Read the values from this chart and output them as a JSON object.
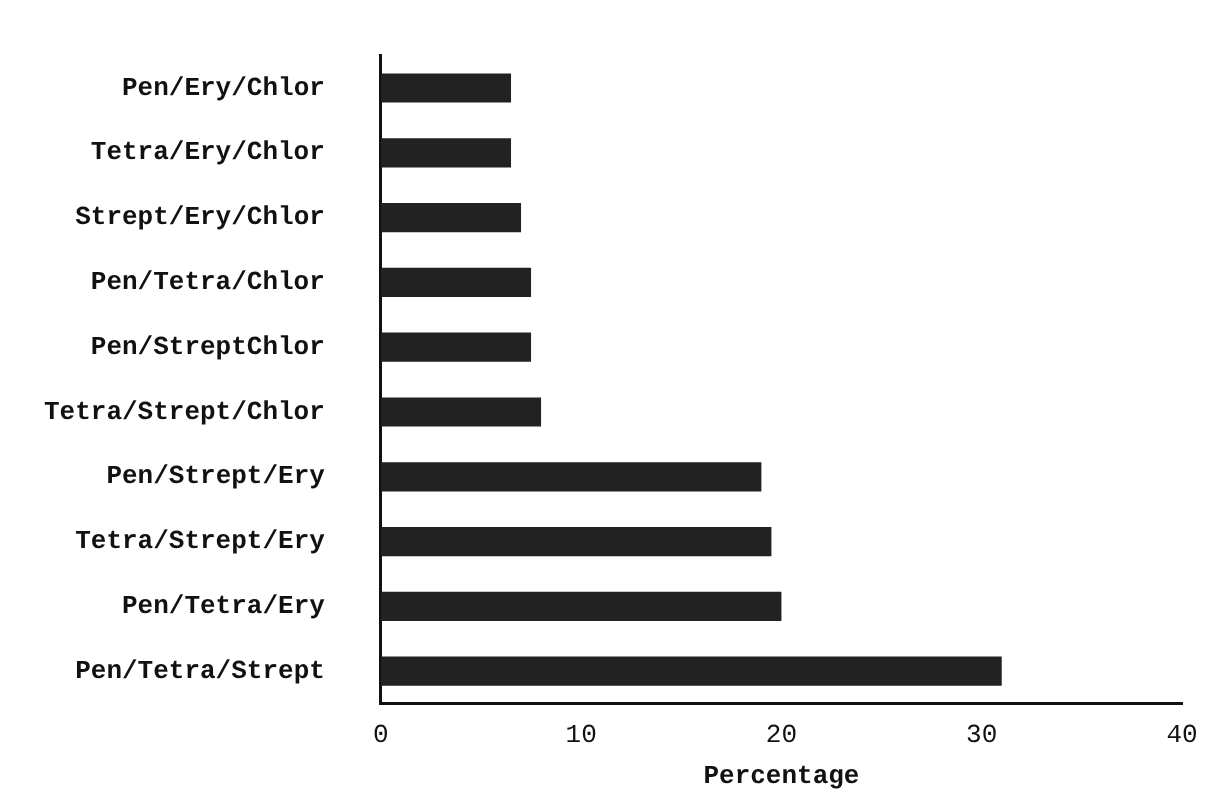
{
  "chart_data": {
    "type": "bar",
    "orientation": "horizontal",
    "xlabel": "Percentage",
    "categories": [
      "Pen/Ery/Chlor",
      "Tetra/Ery/Chlor",
      "Strept/Ery/Chlor",
      "Pen/Tetra/Chlor",
      "Pen/StreptChlor",
      "Tetra/Strept/Chlor",
      "Pen/Strept/Ery",
      "Tetra/Strept/Ery",
      "Pen/Tetra/Ery",
      "Pen/Tetra/Strept"
    ],
    "values": [
      6.5,
      6.5,
      7,
      7.5,
      7.5,
      8,
      19,
      19.5,
      20,
      31
    ],
    "color": "#222222",
    "xlim": [
      0,
      40
    ],
    "xticks": [
      0,
      10,
      20,
      30,
      40
    ],
    "grid": false,
    "legend": false
  }
}
